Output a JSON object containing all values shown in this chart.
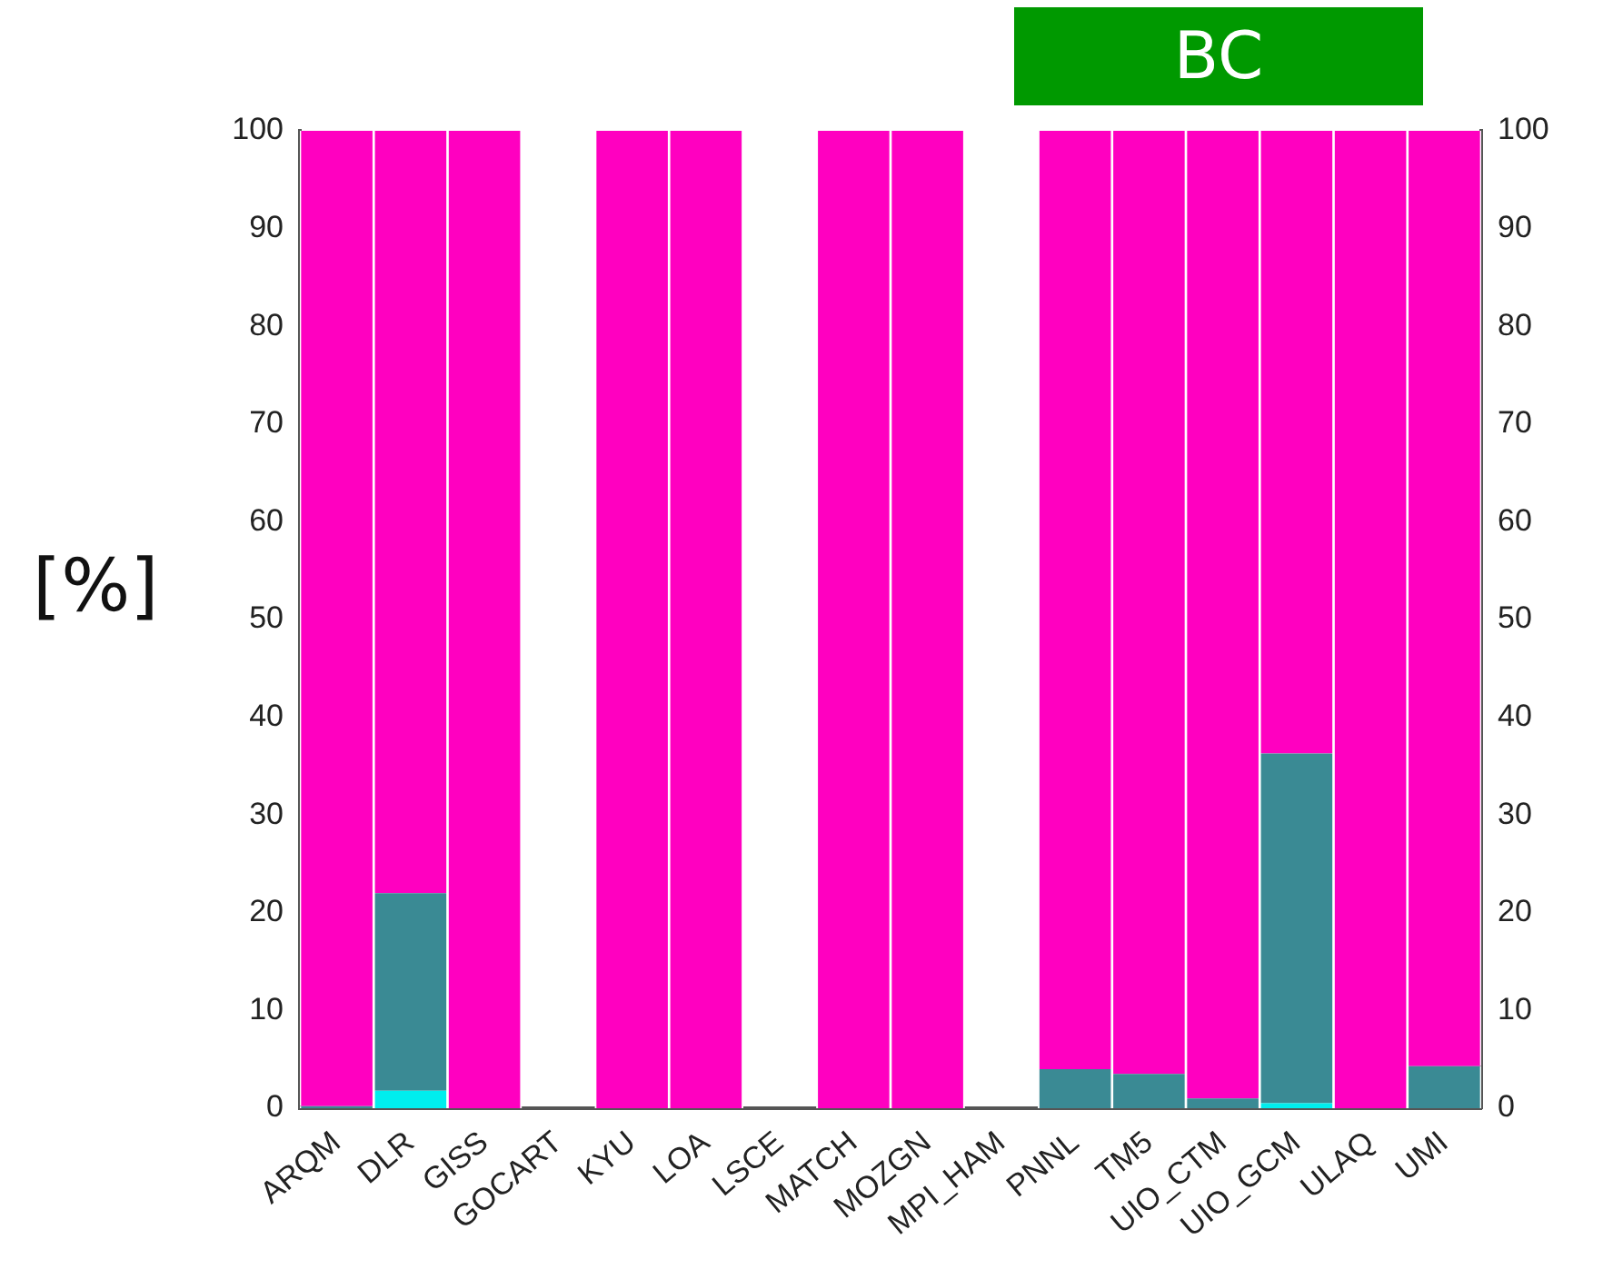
{
  "chart_data": {
    "type": "bar",
    "title": "BC",
    "ylabel": "[%]",
    "stacked": true,
    "categories": [
      "ARQM",
      "DLR",
      "GISS",
      "GOCART",
      "KYU",
      "LOA",
      "LSCE",
      "MATCH",
      "MOZGN",
      "MPI_HAM",
      "PNNL",
      "TM5",
      "UIO_CTM",
      "UIO_GCM",
      "ULAQ",
      "UMI"
    ],
    "series": [
      {
        "color": "#00eeee",
        "values": [
          0,
          1.8,
          0,
          null,
          0,
          0,
          null,
          0,
          0,
          null,
          0,
          0,
          0,
          0.5,
          0,
          0
        ]
      },
      {
        "color": "#3a8a94",
        "values": [
          0.2,
          20.2,
          0,
          null,
          0,
          0,
          null,
          0,
          0,
          null,
          4,
          3.5,
          1,
          35.8,
          0,
          4.3
        ]
      },
      {
        "color": "#ff00c0",
        "values": [
          99.8,
          78,
          100,
          null,
          100,
          100,
          null,
          100,
          100,
          null,
          96,
          96.5,
          99,
          63.7,
          100,
          95.7
        ]
      }
    ],
    "ylim": [
      0,
      100
    ],
    "yticks": [
      0,
      10,
      20,
      30,
      40,
      50,
      60,
      70,
      80,
      90,
      100
    ],
    "y2lim": [
      0,
      100
    ],
    "y2ticks": [
      0,
      10,
      20,
      30,
      40,
      50,
      60,
      70,
      80,
      90,
      100
    ],
    "grid": false,
    "legend": false
  }
}
